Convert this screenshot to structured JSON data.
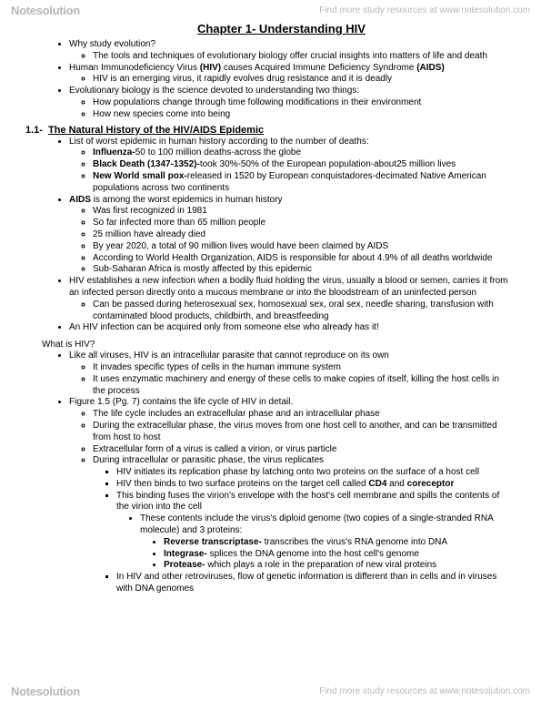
{
  "watermark": {
    "logo_left": "Note",
    "logo_right": "solution",
    "tagline": "Find more study resources at www.notesolution.com"
  },
  "title": "Chapter 1- Understanding HIV",
  "section1": {
    "number": "1.1-",
    "heading": "The Natural History of the HIV/AIDS Epidemic"
  },
  "q_whatishiv": "What is HIV?",
  "bullets1": {
    "a": "Why study evolution?",
    "a1": "The tools and techniques of evolutionary biology offer crucial insights into matters of life and death",
    "b_pre": "Human Immunodeficiency Virus ",
    "b_bold1": "(HIV)",
    "b_mid": " causes Acquired Immune Deficiency Syndrome ",
    "b_bold2": "(AIDS)",
    "b1": "HIV is an emerging virus, it rapidly evolves drug resistance and it is deadly",
    "c": "Evolutionary biology is the science devoted to understanding two things:",
    "c1": "How populations change through time following modifications in their environment",
    "c2": "How new species come into being"
  },
  "bullets2": {
    "a": "List of worst epidemic in human history according to the number of deaths:",
    "a1b": "Influenza-",
    "a1t": "50 to 100 million deaths-across the globe",
    "a2b": "Black Death (1347-1352)-",
    "a2t": "took 30%-50% of the European population-about25 million lives",
    "a3b": "New World small pox-",
    "a3t": "released in 1520 by European conquistadores-decimated Native American populations across two continents",
    "b_b": "AIDS",
    "b_t": " is among the worst epidemics in human history",
    "b1": "Was first recognized in 1981",
    "b2": "So far infected more than 65 million people",
    "b3": "25 million have already died",
    "b4": "By year 2020, a total of 90 million lives would have been claimed by AIDS",
    "b5": "According to World Health Organization, AIDS is responsible for about 4.9% of all deaths worldwide",
    "b6": "Sub-Saharan Africa is mostly affected by this epidemic",
    "c": "HIV establishes a new infection when a bodily fluid holding the virus, usually a blood or semen, carries it from an infected person directly onto a mucous membrane or into the bloodstream of an uninfected person",
    "c1": "Can be passed during heterosexual sex, homosexual sex, oral sex, needle sharing, transfusion with contaminated blood products, childbirth, and breastfeeding",
    "d": "An HIV infection can be acquired only from someone else who already has it!"
  },
  "bullets3": {
    "a": "Like all viruses, HIV is an intracellular parasite that cannot reproduce on its own",
    "a1": "It invades specific types of cells in the human immune system",
    "a2": "It uses enzymatic machinery and energy of these cells to make copies of itself, killing the host cells in the process",
    "b": "Figure 1.5 (Pg. 7) contains the life cycle of HIV in detail.",
    "b1": "The life cycle includes an extracellular phase and an intracellular phase",
    "b2": "During the extracellular phase, the virus moves from one host cell to another, and can be transmitted from host to host",
    "b3": "Extracellular form of a virus is called a virion, or virus particle",
    "b4": "During intracellular or parasitic phase, the virus replicates",
    "b4_1": "HIV initiates its replication phase by latching onto two proteins on the surface of a host cell",
    "b4_2pre": "HIV then binds to two surface proteins on the target cell called ",
    "b4_2b1": "CD4",
    "b4_2mid": " and ",
    "b4_2b2": "coreceptor",
    "b4_3": "This binding fuses the virion's envelope with the host's cell membrane and spills the contents of the virion into the cell",
    "b4_3_1": "These contents include the virus's diploid genome (two copies of a single-stranded RNA molecule) and 3 proteins:",
    "b4_3_1_1b": "Reverse transcriptase-",
    "b4_3_1_1t": " transcribes the virus's RNA genome into DNA",
    "b4_3_1_2b": "Integrase-",
    "b4_3_1_2t": " splices the DNA genome into the host cell's genome",
    "b4_3_1_3b": "Protease-",
    "b4_3_1_3t": " which plays a role in the preparation of new viral proteins",
    "b4_4": "In HIV and other retroviruses, flow of genetic information is different than in cells and in viruses with DNA genomes"
  }
}
